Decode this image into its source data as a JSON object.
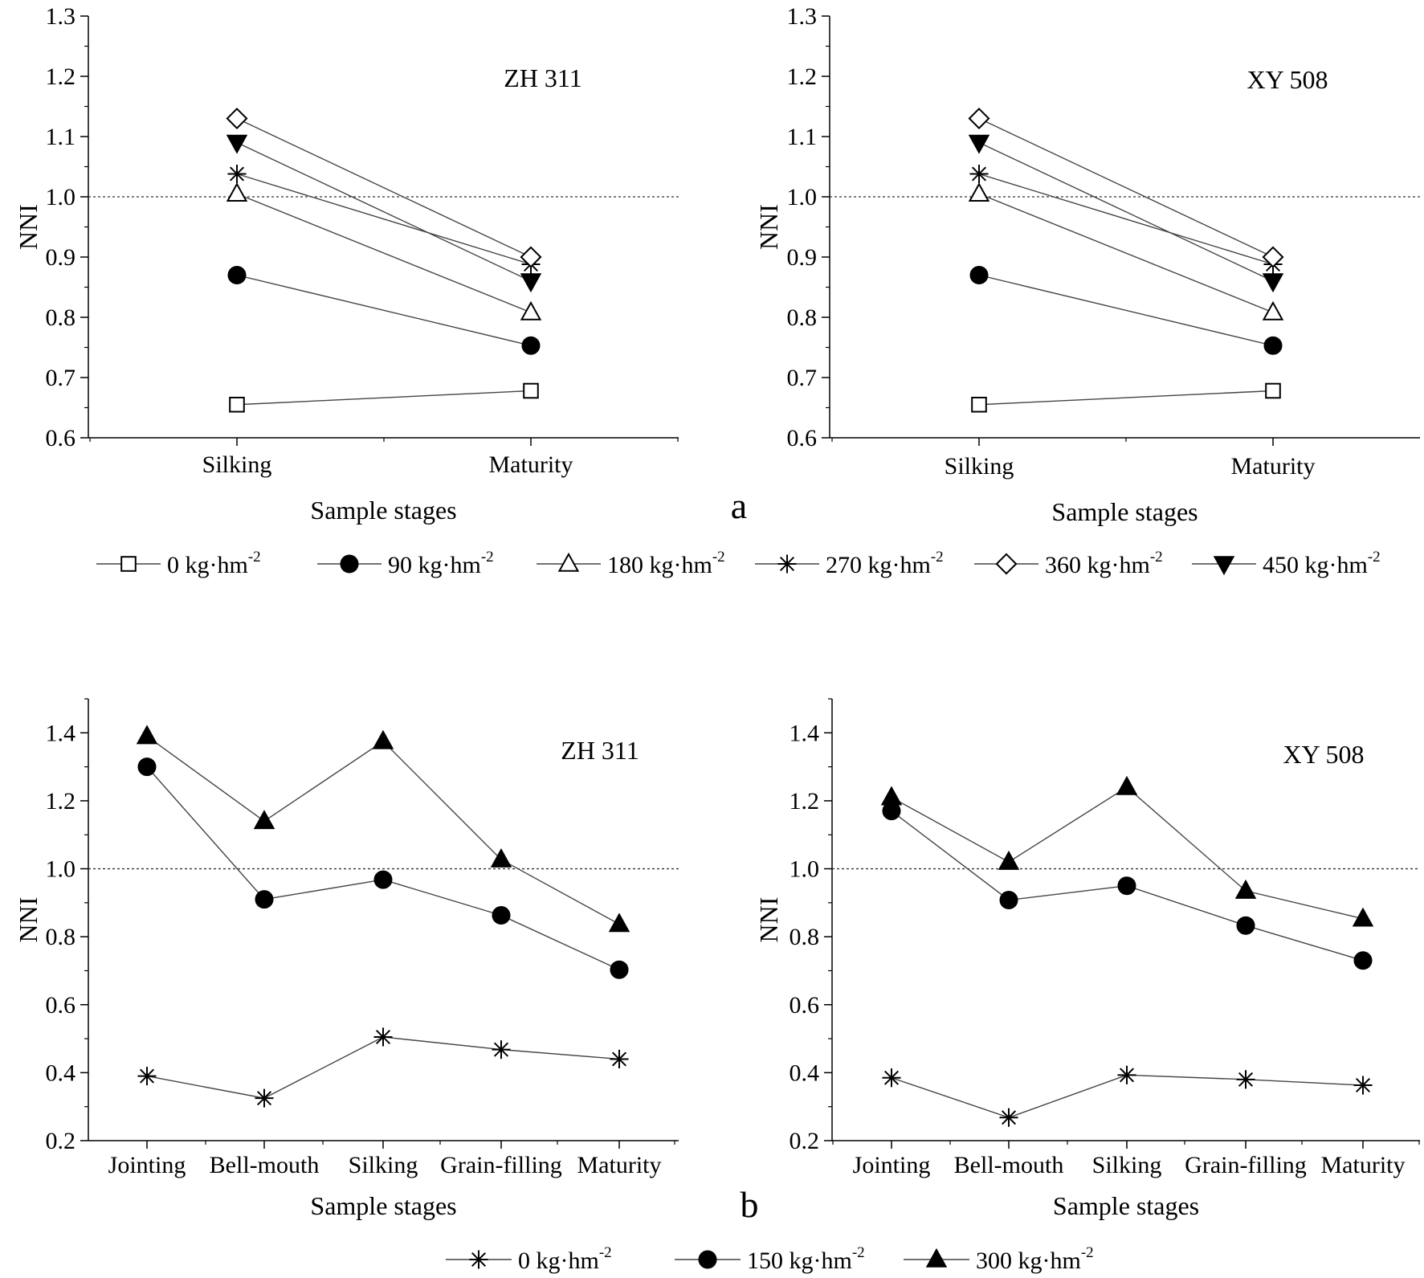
{
  "chart_data": [
    {
      "type": "line",
      "title": "ZH 311",
      "xlabel": "Sample stages",
      "ylabel": "NNI",
      "categories": [
        "Silking",
        "Maturity"
      ],
      "ylim": [
        0.6,
        1.3
      ],
      "yticks": [
        "0.6",
        "0.7",
        "0.8",
        "0.9",
        "1.0",
        "1.1",
        "1.2",
        "1.3"
      ],
      "reference_line": 1.0,
      "series": [
        {
          "name": "0 kg·hm-2",
          "marker": "square-open",
          "values": [
            0.655,
            0.678
          ]
        },
        {
          "name": "90 kg·hm-2",
          "marker": "circle-filled",
          "values": [
            0.87,
            0.753
          ]
        },
        {
          "name": "180 kg·hm-2",
          "marker": "triangle-up-open",
          "values": [
            1.005,
            0.808
          ]
        },
        {
          "name": "270 kg·hm-2",
          "marker": "asterisk",
          "values": [
            1.038,
            0.888
          ]
        },
        {
          "name": "360 kg·hm-2",
          "marker": "diamond-open",
          "values": [
            1.13,
            0.9
          ]
        },
        {
          "name": "450 kg·hm-2",
          "marker": "triangle-down-filled",
          "values": [
            1.09,
            0.86
          ]
        }
      ]
    },
    {
      "type": "line",
      "title": "XY 508",
      "xlabel": "Sample stages",
      "ylabel": "NNI",
      "categories": [
        "Silking",
        "Maturity"
      ],
      "ylim": [
        0.6,
        1.3
      ],
      "yticks": [
        "0.6",
        "0.7",
        "0.8",
        "0.9",
        "1.0",
        "1.1",
        "1.2",
        "1.3"
      ],
      "reference_line": 1.0,
      "series": [
        {
          "name": "0 kg·hm-2",
          "marker": "square-open",
          "values": [
            0.655,
            0.678
          ]
        },
        {
          "name": "90 kg·hm-2",
          "marker": "circle-filled",
          "values": [
            0.87,
            0.753
          ]
        },
        {
          "name": "180 kg·hm-2",
          "marker": "triangle-up-open",
          "values": [
            1.005,
            0.808
          ]
        },
        {
          "name": "270 kg·hm-2",
          "marker": "asterisk",
          "values": [
            1.038,
            0.888
          ]
        },
        {
          "name": "360 kg·hm-2",
          "marker": "diamond-open",
          "values": [
            1.13,
            0.9
          ]
        },
        {
          "name": "450 kg·hm-2",
          "marker": "triangle-down-filled",
          "values": [
            1.09,
            0.86
          ]
        }
      ]
    },
    {
      "type": "line",
      "title": "ZH 311",
      "xlabel": "Sample stages",
      "ylabel": "NNI",
      "categories": [
        "Jointing",
        "Bell-mouth",
        "Silking",
        "Grain-filling",
        "Maturity"
      ],
      "ylim": [
        0.2,
        1.5
      ],
      "yticks": [
        "0.2",
        "0.4",
        "0.6",
        "0.8",
        "1.0",
        "1.2",
        "1.4"
      ],
      "reference_line": 1.0,
      "series": [
        {
          "name": "0 kg·hm-2",
          "marker": "asterisk",
          "values": [
            0.39,
            0.325,
            0.505,
            0.468,
            0.44
          ]
        },
        {
          "name": "150 kg·hm-2",
          "marker": "circle-filled",
          "values": [
            1.3,
            0.91,
            0.968,
            0.863,
            0.703
          ]
        },
        {
          "name": "300 kg·hm-2",
          "marker": "triangle-up-filled",
          "values": [
            1.39,
            1.14,
            1.375,
            1.027,
            0.837
          ]
        }
      ]
    },
    {
      "type": "line",
      "title": "XY 508",
      "xlabel": "Sample stages",
      "ylabel": "NNI",
      "categories": [
        "Jointing",
        "Bell-mouth",
        "Silking",
        "Grain-filling",
        "Maturity"
      ],
      "ylim": [
        0.2,
        1.5
      ],
      "yticks": [
        "0.2",
        "0.4",
        "0.6",
        "0.8",
        "1.0",
        "1.2",
        "1.4"
      ],
      "reference_line": 1.0,
      "series": [
        {
          "name": "0 kg·hm-2",
          "marker": "asterisk",
          "values": [
            0.385,
            0.268,
            0.393,
            0.38,
            0.363
          ]
        },
        {
          "name": "150 kg·hm-2",
          "marker": "circle-filled",
          "values": [
            1.17,
            0.908,
            0.95,
            0.833,
            0.73
          ]
        },
        {
          "name": "300 kg·hm-2",
          "marker": "triangle-up-filled",
          "values": [
            1.21,
            1.02,
            1.24,
            0.935,
            0.853
          ]
        }
      ]
    }
  ],
  "panel_labels": [
    "a",
    "b"
  ],
  "legends": [
    {
      "items": [
        {
          "text": "0 kg·hm",
          "sup": "-2",
          "marker": "square-open"
        },
        {
          "text": "90 kg·hm",
          "sup": "-2",
          "marker": "circle-filled"
        },
        {
          "text": "180 kg·hm",
          "sup": "-2",
          "marker": "triangle-up-open"
        },
        {
          "text": "270 kg·hm",
          "sup": "-2",
          "marker": "asterisk"
        },
        {
          "text": "360 kg·hm",
          "sup": "-2",
          "marker": "diamond-open"
        },
        {
          "text": "450 kg·hm",
          "sup": "-2",
          "marker": "triangle-down-filled"
        }
      ]
    },
    {
      "items": [
        {
          "text": "0 kg·hm",
          "sup": "-2",
          "marker": "asterisk"
        },
        {
          "text": "150 kg·hm",
          "sup": "-2",
          "marker": "circle-filled"
        },
        {
          "text": "300 kg·hm",
          "sup": "-2",
          "marker": "triangle-up-filled"
        }
      ]
    }
  ]
}
